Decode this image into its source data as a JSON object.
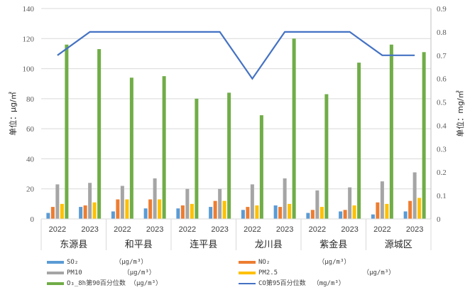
{
  "chart_data": {
    "type": "bar+line",
    "title": "",
    "categories": [
      "东源县",
      "和平县",
      "连平县",
      "龙川县",
      "紫金县",
      "源城区"
    ],
    "sub_categories": [
      "2022",
      "2023"
    ],
    "x": [
      "东源县 2022",
      "东源县 2023",
      "和平县 2022",
      "和平县 2023",
      "连平县 2022",
      "连平县 2023",
      "龙川县 2022",
      "龙川县 2023",
      "紫金县 2022",
      "紫金县 2023",
      "源城区 2022",
      "源城区 2023"
    ],
    "ylabel": "单位：μg/㎡",
    "y2label": "单位：mg/㎡",
    "ylim": [
      0,
      140
    ],
    "y2lim": [
      0,
      0.9
    ],
    "yticks": [
      "0",
      "20",
      "40",
      "60",
      "80",
      "100",
      "120",
      "140"
    ],
    "y2ticks": [
      "0",
      "0.1",
      "0.2",
      "0.3",
      "0.4",
      "0.5",
      "0.6",
      "0.7",
      "0.8",
      "0.9"
    ],
    "grid": true,
    "legend_position": "bottom",
    "series": [
      {
        "name": "SO₂",
        "unit": "（μg/m³）",
        "type": "bar",
        "axis": "left",
        "color": "#5B9BD5",
        "values": [
          4,
          8,
          5,
          7,
          7,
          8,
          6,
          9,
          4,
          5,
          3,
          5
        ]
      },
      {
        "name": "NO₂",
        "unit": "（μg/m³）",
        "type": "bar",
        "axis": "left",
        "color": "#ED7D31",
        "values": [
          8,
          9,
          13,
          13,
          9,
          12,
          8,
          8,
          6,
          6,
          11,
          12
        ]
      },
      {
        "name": "PM10",
        "unit": "（μg/m³）",
        "type": "bar",
        "axis": "left",
        "color": "#A5A5A5",
        "values": [
          23,
          24,
          22,
          27,
          20,
          20,
          23,
          27,
          19,
          21,
          25,
          31
        ]
      },
      {
        "name": "PM2.5",
        "unit": "（μg/m³）",
        "type": "bar",
        "axis": "left",
        "color": "#FFC000",
        "values": [
          10,
          11,
          13,
          13,
          10,
          12,
          9,
          10,
          8,
          9,
          10,
          14
        ]
      },
      {
        "name": "O₃_8h第90百分位数",
        "unit": "（μg/m³）",
        "type": "bar",
        "axis": "left",
        "color": "#70AD47",
        "values": [
          116,
          113,
          94,
          95,
          80,
          84,
          69,
          120,
          83,
          104,
          116,
          111
        ]
      },
      {
        "name": "CO第95百分位数",
        "unit": "（mg/m³）",
        "type": "line",
        "axis": "right",
        "color": "#4472C4",
        "values": [
          0.7,
          0.8,
          0.8,
          0.8,
          0.8,
          0.8,
          0.6,
          0.8,
          0.8,
          0.8,
          0.7,
          0.7
        ]
      }
    ]
  }
}
